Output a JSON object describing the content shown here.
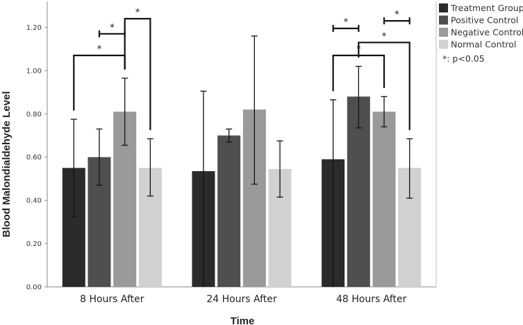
{
  "chart_data": {
    "type": "bar",
    "title": "",
    "xlabel": "Time",
    "ylabel": "Blood Malondialdehyde Level",
    "ylim": [
      0,
      1.32
    ],
    "yticks": [
      "0.00",
      "0.20",
      "0.40",
      "0.60",
      "0.80",
      "1.00",
      "1.20"
    ],
    "categories": [
      "8 Hours After",
      "24 Hours After",
      "48 Hours After"
    ],
    "series": [
      {
        "name": "Treatment Group",
        "color": "#2b2b2d",
        "values": [
          0.55,
          0.535,
          0.59
        ],
        "err_low": [
          0.325,
          0.0,
          0.0
        ],
        "err_high": [
          0.775,
          0.905,
          0.865
        ]
      },
      {
        "name": "Positive Control",
        "color": "#4f4f52",
        "values": [
          0.6,
          0.7,
          0.88
        ],
        "err_low": [
          0.47,
          0.67,
          0.735
        ],
        "err_high": [
          0.73,
          0.73,
          1.02
        ]
      },
      {
        "name": "Negative Control",
        "color": "#9b9999",
        "values": [
          0.81,
          0.82,
          0.81
        ],
        "err_low": [
          0.655,
          0.475,
          0.74
        ],
        "err_high": [
          0.965,
          1.16,
          0.88
        ]
      },
      {
        "name": "Normal Control",
        "color": "#d1d1d3",
        "values": [
          0.55,
          0.545,
          0.55
        ],
        "err_low": [
          0.42,
          0.415,
          0.41
        ],
        "err_high": [
          0.685,
          0.675,
          0.685
        ]
      }
    ],
    "significance": [
      {
        "group": 0,
        "from": 1,
        "to": 2,
        "level": 1.17,
        "label": "*"
      },
      {
        "group": 0,
        "from": 0,
        "to": 2,
        "level": 1.07,
        "label": "*"
      },
      {
        "group": 0,
        "from": 2,
        "to": 3,
        "level": 1.24,
        "label": "*"
      },
      {
        "group": 2,
        "from": 0,
        "to": 1,
        "level": 1.195,
        "label": "*"
      },
      {
        "group": 2,
        "from": 2,
        "to": 3,
        "level": 1.23,
        "label": "*"
      },
      {
        "group": 2,
        "from": 0,
        "to": 2,
        "level": 1.07,
        "label": "*"
      },
      {
        "group": 2,
        "from": 1,
        "to": 3,
        "level": 1.13,
        "label": "*"
      }
    ],
    "note": "*: p<0.05",
    "legend_position": "top-right",
    "grid": false
  }
}
